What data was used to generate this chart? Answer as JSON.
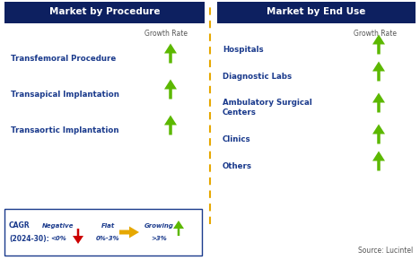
{
  "title_left": "Market by Procedure",
  "title_right": "Market by End Use",
  "title_bg": "#0d2060",
  "title_fg": "#ffffff",
  "left_items": [
    "Transfemoral Procedure",
    "Transapical Implantation",
    "Transaortic Implantation"
  ],
  "right_items": [
    "Hospitals",
    "Diagnostic Labs",
    "Ambulatory Surgical\nCenters",
    "Clinics",
    "Others"
  ],
  "item_color": "#1a3a8c",
  "growth_rate_color": "#555555",
  "arrow_up_color": "#5cb800",
  "arrow_down_color": "#cc0000",
  "arrow_flat_color": "#e6a800",
  "divider_color": "#e6a800",
  "legend_border_color": "#1a3a8c",
  "source_text": "Source: Lucintel",
  "bg_color": "#ffffff"
}
